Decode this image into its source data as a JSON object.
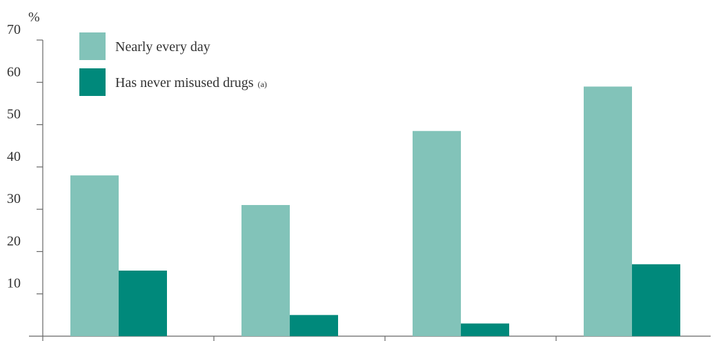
{
  "chart_data": {
    "type": "bar",
    "title": "",
    "xlabel": "",
    "ylabel": "%",
    "ylim": [
      0,
      70
    ],
    "yticks": [
      10,
      20,
      30,
      40,
      50,
      60,
      70
    ],
    "grid": false,
    "legend_position": "top-left",
    "categories": [
      "",
      "",
      "",
      ""
    ],
    "series": [
      {
        "name": "Nearly every day",
        "note": "",
        "color": "#82c3b9",
        "values": [
          38,
          31,
          48.5,
          59
        ]
      },
      {
        "name": "Has never misused drugs",
        "note": "(a)",
        "color": "#00897b",
        "values": [
          15.5,
          5,
          3,
          17
        ]
      }
    ]
  },
  "colors": {
    "axis": "#666666",
    "text": "#333333"
  }
}
